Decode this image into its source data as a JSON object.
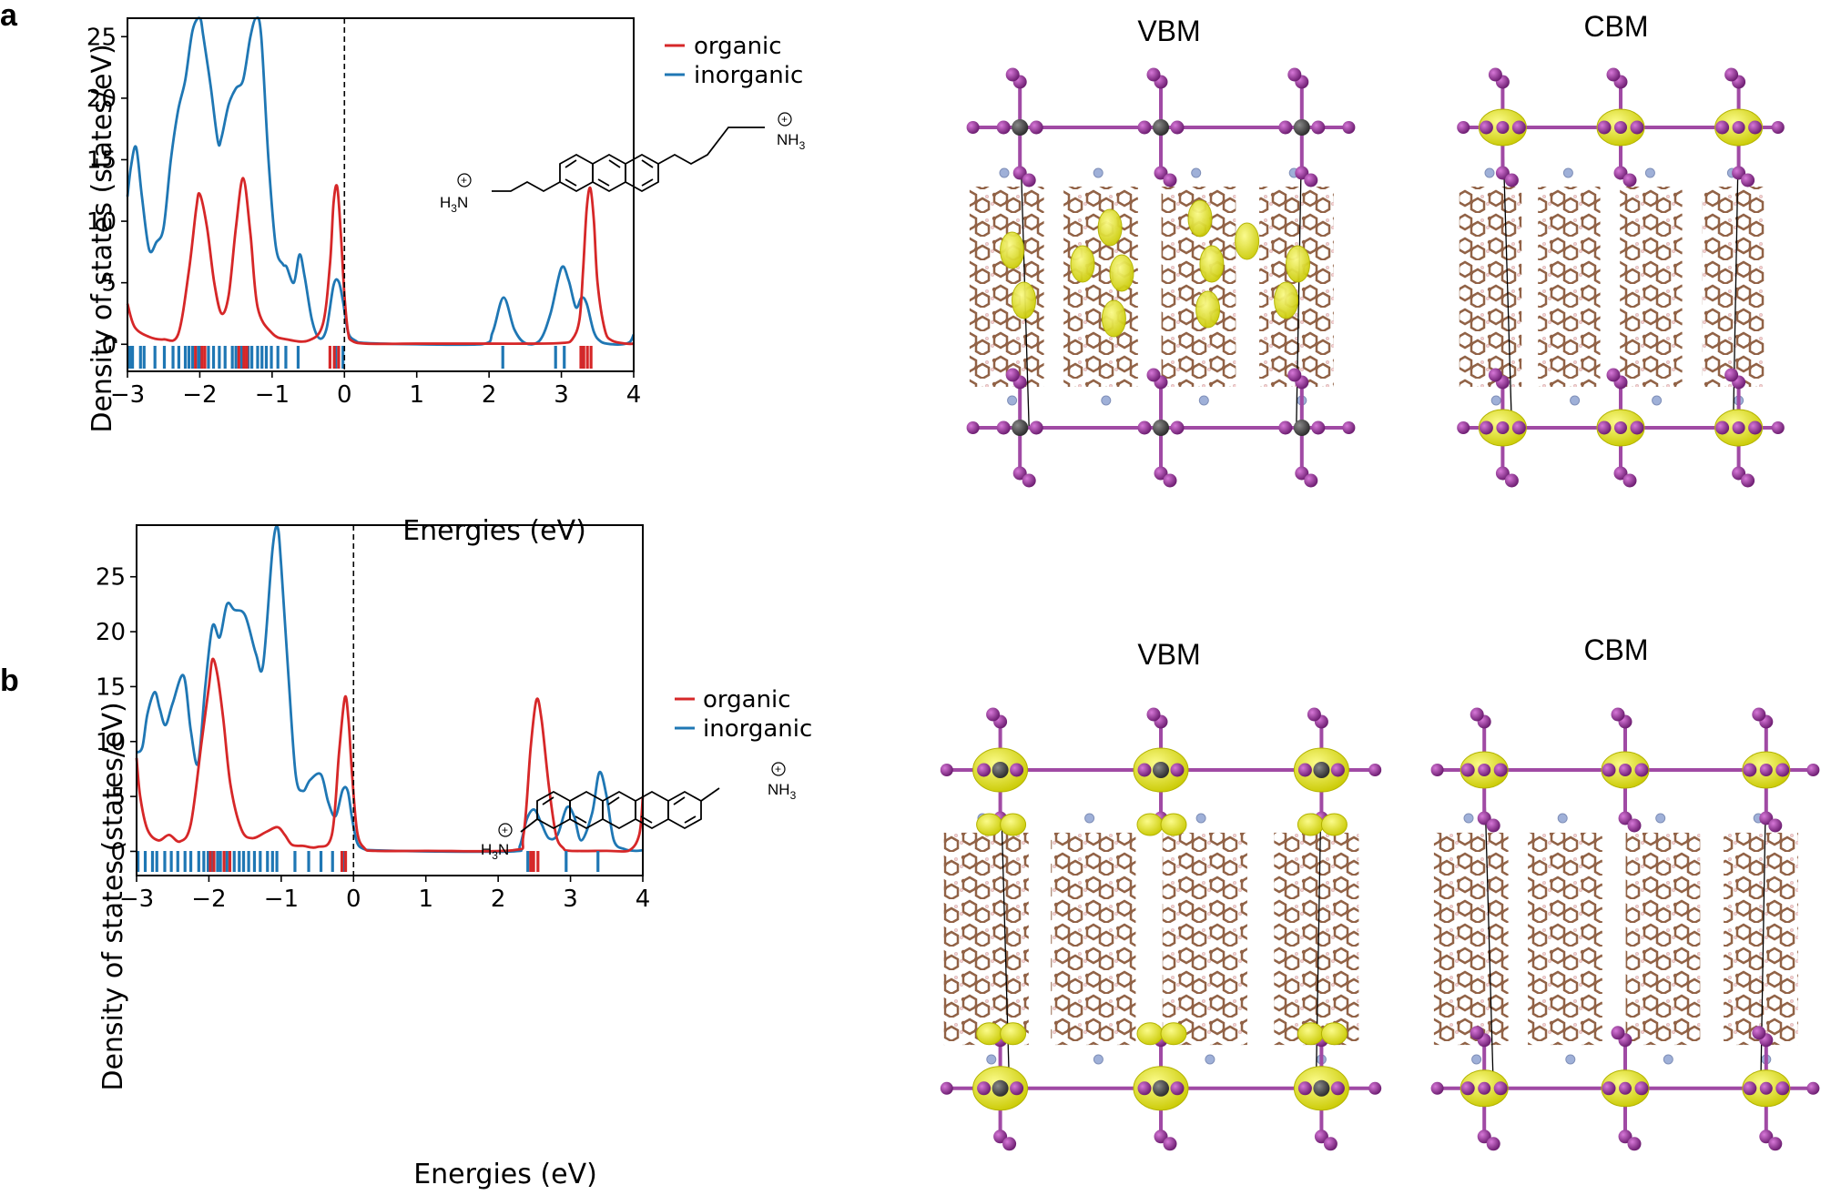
{
  "panels": [
    {
      "label": "a",
      "vbm_title": "VBM",
      "cbm_title": "CBM",
      "cation_left": "H",
      "cation_left_sub": "3",
      "cation_left_tail": "N",
      "cation_right": "NH",
      "cation_right_sub": "3",
      "charge_symbol": "+"
    },
    {
      "label": "b",
      "vbm_title": "VBM",
      "cbm_title": "CBM",
      "cation_left": "H",
      "cation_left_sub": "3",
      "cation_left_tail": "N",
      "cation_right": "NH",
      "cation_right_sub": "3",
      "charge_symbol": "+"
    }
  ],
  "colors": {
    "organic": "#d62728",
    "inorganic": "#1f77b4",
    "iso": "#e6e61a",
    "iodine": "#8b2a8e",
    "lead": "#4a4a4a",
    "carbon": "#8b5a3c",
    "nitrogen": "#9fb0d8",
    "hydrogen": "#f2c8c8"
  },
  "chart_data": [
    {
      "type": "line",
      "xlabel": "Energies (eV)",
      "ylabel": "Density of states (states/eV)",
      "xlim": [
        -3,
        4
      ],
      "ylim": [
        -2.2,
        26.5
      ],
      "xticks": [
        -3,
        -2,
        -1,
        0,
        1,
        2,
        3,
        4
      ],
      "xtick_labels": [
        "−3",
        "−2",
        "−1",
        "0",
        "1",
        "2",
        "3",
        "4"
      ],
      "yticks": [
        0,
        5,
        10,
        15,
        20,
        25
      ],
      "yticks_labels": [
        "0",
        "5",
        "10",
        "15",
        "20",
        "25"
      ],
      "fermi_level": 0,
      "legend_position": "top-right",
      "series": [
        {
          "name": "organic",
          "color": "#d62728",
          "x": [
            -3,
            -2.9,
            -2.7,
            -2.5,
            -2.3,
            -2.15,
            -2.05,
            -2,
            -1.9,
            -1.8,
            -1.7,
            -1.6,
            -1.5,
            -1.4,
            -1.3,
            -1.2,
            -1.0,
            -0.8,
            -0.5,
            -0.3,
            -0.2,
            -0.15,
            -0.1,
            -0.05,
            0,
            0.05,
            0.1,
            0.3,
            1,
            2,
            2.5,
            3,
            3.15,
            3.25,
            3.3,
            3.35,
            3.4,
            3.45,
            3.5,
            3.6,
            3.7,
            3.9,
            4
          ],
          "y": [
            3.3,
            1.4,
            0.6,
            0.4,
            0.8,
            6.0,
            11.0,
            12.2,
            9.5,
            5.0,
            2.5,
            4.0,
            9.5,
            13.5,
            9.0,
            3.0,
            0.9,
            0.4,
            0.3,
            1.6,
            6.5,
            11.5,
            12.8,
            9.0,
            4.0,
            1.0,
            0.3,
            0.05,
            0.05,
            0.05,
            0.05,
            0.1,
            0.4,
            2.0,
            6.0,
            11.0,
            12.7,
            10.0,
            5.0,
            1.2,
            0.3,
            0.05,
            0.05
          ]
        },
        {
          "name": "inorganic",
          "color": "#1f77b4",
          "x": [
            -3,
            -2.95,
            -2.88,
            -2.8,
            -2.7,
            -2.6,
            -2.5,
            -2.4,
            -2.3,
            -2.2,
            -2.1,
            -2.0,
            -1.95,
            -1.85,
            -1.75,
            -1.7,
            -1.6,
            -1.5,
            -1.4,
            -1.3,
            -1.22,
            -1.15,
            -1.05,
            -0.95,
            -0.85,
            -0.8,
            -0.7,
            -0.62,
            -0.55,
            -0.45,
            -0.35,
            -0.25,
            -0.15,
            -0.08,
            -0.02,
            0.05,
            0.15,
            0.3,
            1,
            1.9,
            2.05,
            2.2,
            2.35,
            2.5,
            2.7,
            2.85,
            3.0,
            3.1,
            3.2,
            3.28,
            3.35,
            3.45,
            3.55,
            3.7,
            3.85,
            3.95,
            4
          ],
          "y": [
            12.0,
            14.5,
            16.0,
            12.0,
            7.7,
            8.3,
            9.5,
            15.0,
            19.0,
            21.5,
            25.5,
            26.5,
            25.0,
            21.0,
            16.5,
            16.8,
            19.5,
            20.8,
            21.5,
            25.0,
            26.5,
            25.0,
            15.0,
            8.0,
            6.5,
            6.3,
            5.0,
            7.3,
            5.5,
            2.0,
            0.5,
            1.2,
            4.8,
            5.1,
            3.5,
            1.0,
            0.3,
            0.1,
            0.0,
            0.0,
            1.0,
            3.8,
            1.2,
            0.1,
            0.3,
            2.5,
            6.2,
            5.2,
            3.0,
            3.8,
            3.3,
            1.0,
            0.2,
            0.0,
            0.0,
            0.2,
            0.8
          ]
        }
      ],
      "band_ticks": {
        "organic": [
          -2.06,
          -1.97,
          -1.93,
          -1.46,
          -1.39,
          -1.35,
          -0.2,
          -0.14,
          -0.08,
          3.27,
          3.31,
          3.36,
          3.41
        ],
        "inorganic": [
          -2.97,
          -2.93,
          -2.82,
          -2.77,
          -2.62,
          -2.49,
          -2.37,
          -2.29,
          -2.2,
          -2.15,
          -2.1,
          -2.02,
          -1.99,
          -1.88,
          -1.81,
          -1.73,
          -1.65,
          -1.55,
          -1.5,
          -1.42,
          -1.33,
          -1.28,
          -1.2,
          -1.14,
          -1.08,
          -1.01,
          -0.92,
          -0.81,
          -0.64,
          -0.12,
          -0.02,
          2.19,
          2.92,
          3.04,
          3.29
        ]
      }
    },
    {
      "type": "line",
      "xlabel": "Energies (eV)",
      "ylabel": "Density of states (states/eV)",
      "xlim": [
        -3,
        4
      ],
      "ylim": [
        -2.2,
        29.7
      ],
      "xticks": [
        -3,
        -2,
        -1,
        0,
        1,
        2,
        3,
        4
      ],
      "xtick_labels": [
        "−3",
        "−2",
        "−1",
        "0",
        "1",
        "2",
        "3",
        "4"
      ],
      "yticks": [
        0,
        5,
        10,
        15,
        20,
        25
      ],
      "yticks_labels": [
        "0",
        "5",
        "10",
        "15",
        "20",
        "25"
      ],
      "fermi_level": 0,
      "legend_position": "top-right",
      "series": [
        {
          "name": "organic",
          "color": "#d62728",
          "x": [
            -3,
            -2.95,
            -2.85,
            -2.7,
            -2.55,
            -2.4,
            -2.25,
            -2.1,
            -2.0,
            -1.95,
            -1.88,
            -1.8,
            -1.7,
            -1.55,
            -1.4,
            -1.2,
            -1.05,
            -0.95,
            -0.85,
            -0.7,
            -0.5,
            -0.3,
            -0.2,
            -0.12,
            -0.07,
            -0.02,
            0.05,
            0.15,
            0.3,
            1,
            2.2,
            2.35,
            2.45,
            2.53,
            2.6,
            2.7,
            2.8,
            2.9,
            3.0,
            3.5,
            3.8,
            3.95,
            4
          ],
          "y": [
            8.5,
            5.0,
            2.0,
            1.0,
            1.5,
            0.9,
            2.5,
            10.0,
            15.0,
            17.5,
            16.0,
            12.0,
            6.0,
            2.0,
            1.2,
            1.8,
            2.2,
            1.5,
            0.6,
            0.5,
            0.4,
            1.5,
            9.0,
            14.0,
            12.0,
            7.0,
            1.8,
            0.3,
            0.05,
            0.05,
            0.1,
            1.5,
            9.5,
            13.8,
            12.0,
            6.0,
            1.5,
            0.3,
            0.05,
            0.05,
            0.05,
            1.5,
            5.0
          ]
        },
        {
          "name": "inorganic",
          "color": "#1f77b4",
          "x": [
            -3,
            -2.92,
            -2.85,
            -2.75,
            -2.68,
            -2.6,
            -2.5,
            -2.35,
            -2.25,
            -2.15,
            -2.05,
            -1.95,
            -1.85,
            -1.75,
            -1.65,
            -1.5,
            -1.35,
            -1.25,
            -1.12,
            -1.05,
            -1.0,
            -0.9,
            -0.8,
            -0.7,
            -0.6,
            -0.45,
            -0.35,
            -0.25,
            -0.15,
            -0.08,
            -0.02,
            0.05,
            0.15,
            0.3,
            1,
            2.2,
            2.3,
            2.4,
            2.5,
            2.6,
            2.7,
            2.82,
            2.95,
            3.05,
            3.15,
            3.3,
            3.4,
            3.5,
            3.6,
            3.75,
            3.9,
            4
          ],
          "y": [
            9.0,
            9.5,
            12.5,
            14.5,
            13.0,
            11.5,
            13.5,
            16.0,
            11.0,
            8.0,
            15.0,
            20.5,
            19.5,
            22.5,
            22.0,
            21.5,
            18.0,
            17.0,
            27.5,
            29.5,
            26.0,
            16.0,
            7.0,
            5.5,
            6.5,
            7.0,
            4.5,
            3.2,
            5.6,
            5.5,
            3.0,
            0.8,
            0.2,
            0.1,
            0.0,
            0.0,
            0.5,
            3.0,
            3.8,
            2.5,
            1.2,
            1.5,
            4.0,
            3.2,
            1.0,
            3.5,
            7.2,
            5.0,
            1.0,
            0.2,
            0.05,
            0.1
          ]
        }
      ],
      "band_ticks": {
        "organic": [
          -1.98,
          -1.93,
          -1.79,
          -1.71,
          -0.16,
          -0.11,
          2.45,
          2.49,
          2.55
        ],
        "inorganic": [
          -2.98,
          -2.88,
          -2.78,
          -2.72,
          -2.61,
          -2.52,
          -2.43,
          -2.33,
          -2.25,
          -2.14,
          -2.07,
          -2.01,
          -1.95,
          -1.88,
          -1.84,
          -1.75,
          -1.65,
          -1.58,
          -1.52,
          -1.45,
          -1.37,
          -1.29,
          -1.19,
          -1.12,
          -1.06,
          -0.81,
          -0.62,
          -0.45,
          -0.29,
          -0.14,
          2.41,
          2.94,
          3.38
        ]
      }
    }
  ]
}
